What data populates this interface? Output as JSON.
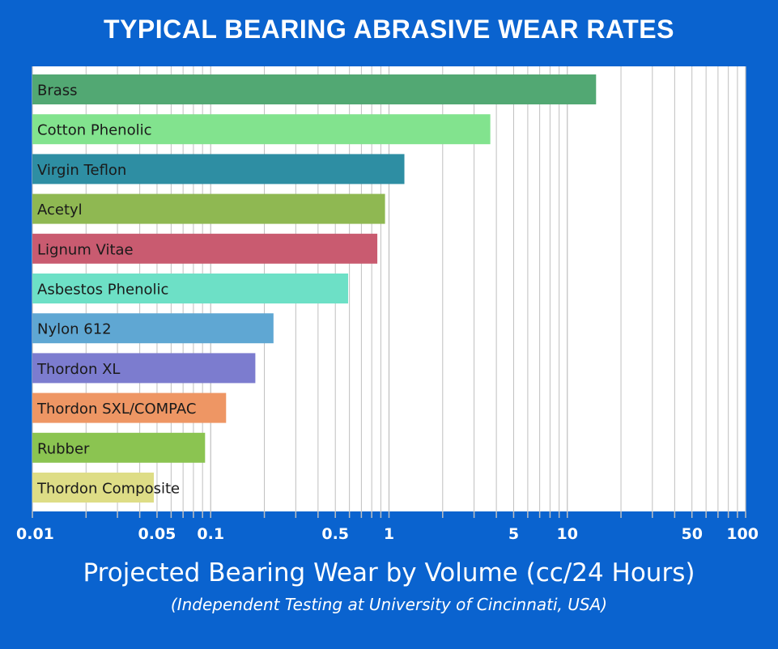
{
  "chart_data": {
    "type": "bar",
    "orientation": "horizontal",
    "title": "TYPICAL BEARING ABRASIVE WEAR RATES",
    "xlabel": "Projected Bearing Wear by Volume (cc/24 Hours)",
    "subtitle": "(Independent Testing at University of Cincinnati, USA)",
    "x_scale": "log",
    "xlim": [
      0.01,
      100
    ],
    "grid": true,
    "x_tick_labels": [
      {
        "value": 0.01,
        "label": "0.01"
      },
      {
        "value": 0.05,
        "label": "0.05"
      },
      {
        "value": 0.1,
        "label": "0.1"
      },
      {
        "value": 0.5,
        "label": "0.5"
      },
      {
        "value": 1,
        "label": "1"
      },
      {
        "value": 5,
        "label": "5"
      },
      {
        "value": 10,
        "label": "10"
      },
      {
        "value": 50,
        "label": "50"
      },
      {
        "value": 100,
        "label": "100"
      }
    ],
    "categories": [
      "Brass",
      "Cotton Phenolic",
      "Virgin Teflon",
      "Acetyl",
      "Lignum Vitae",
      "Asbestos Phenolic",
      "Nylon 612",
      "Thordon XL",
      "Thordon SXL/COMPAC",
      "Rubber",
      "Thordon Composite"
    ],
    "values": [
      14.5,
      3.7,
      1.22,
      0.95,
      0.86,
      0.59,
      0.225,
      0.178,
      0.122,
      0.093,
      0.048
    ],
    "colors": [
      "#52a873",
      "#82e38e",
      "#2e8ea3",
      "#8fb852",
      "#c95b70",
      "#6de0c6",
      "#5fa7d3",
      "#7c7ccf",
      "#ee9664",
      "#8bc451",
      "#dedd86"
    ]
  },
  "colors": {
    "frame_background": "#0a63cf",
    "plot_background": "#ffffff",
    "grid": "#bfbfbf",
    "text_light": "#ffffff",
    "bar_label": "#1a1a1a"
  }
}
